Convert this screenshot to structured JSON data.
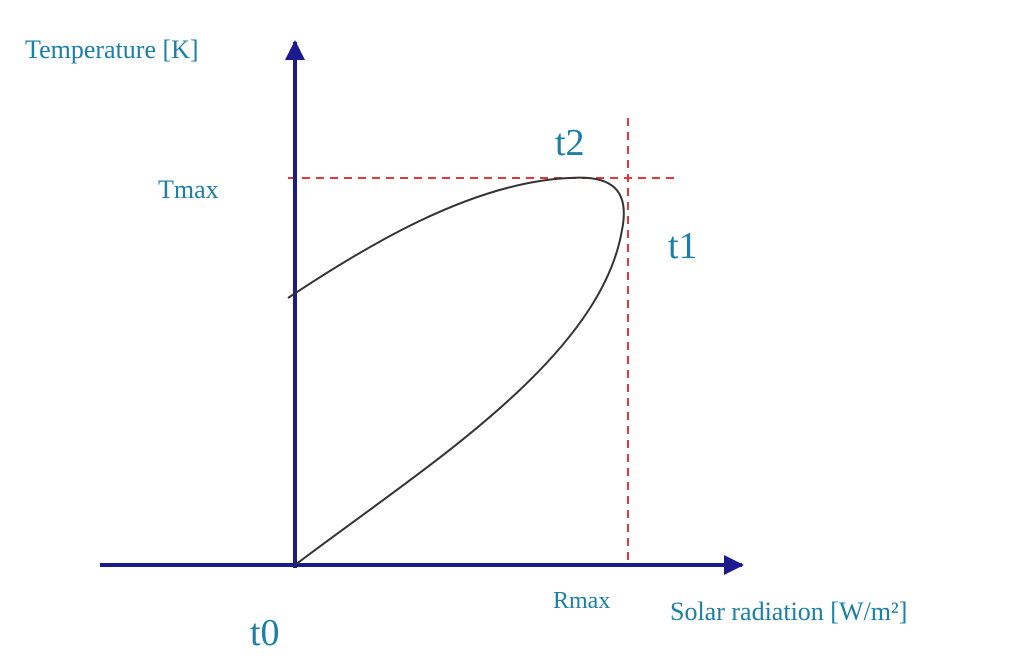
{
  "axes": {
    "y_label": "Temperature [K]",
    "x_label": "Solar radiation [W/m²]"
  },
  "markers": {
    "tmax": "Tmax",
    "rmax": "Rmax"
  },
  "points": {
    "t0": "t0",
    "t1": "t1",
    "t2": "t2"
  }
}
